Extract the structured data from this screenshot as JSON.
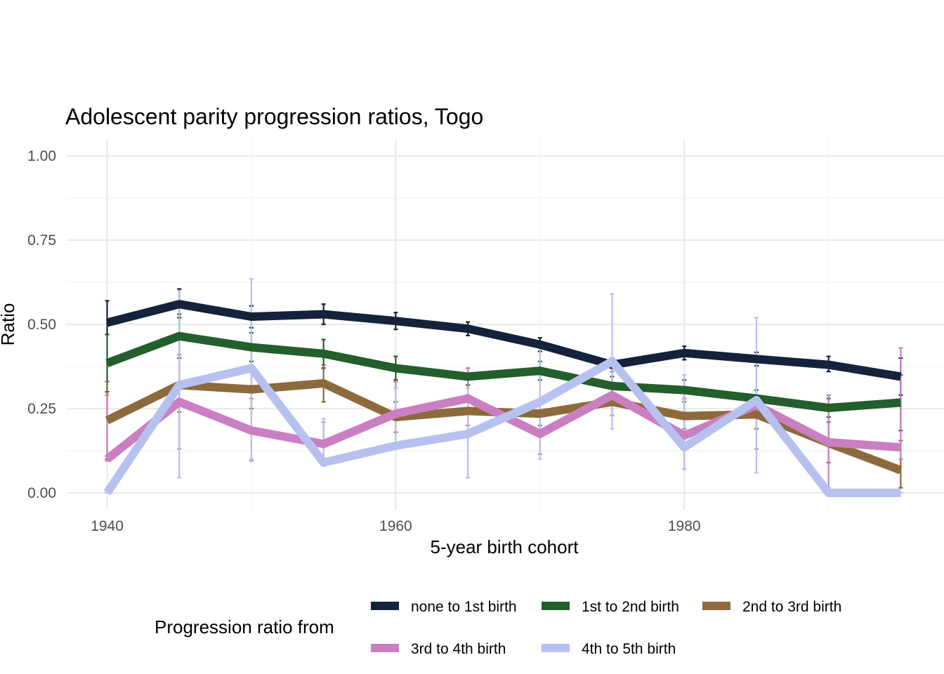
{
  "chart_data": {
    "type": "line",
    "title": "Adolescent parity progression ratios,  Togo",
    "xlabel": "5-year birth cohort",
    "ylabel": "Ratio",
    "x": [
      1940,
      1945,
      1950,
      1955,
      1960,
      1965,
      1970,
      1975,
      1980,
      1985,
      1990,
      1995
    ],
    "xlim": [
      1937.2,
      1998.0
    ],
    "ylim": [
      -0.05,
      1.05
    ],
    "x_ticks": [
      1940,
      1960,
      1980
    ],
    "x_tick_labels": [
      "1940",
      "1960",
      "1980"
    ],
    "y_ticks": [
      0,
      0.25,
      0.5,
      0.75,
      1
    ],
    "y_tick_labels": [
      "0.00",
      "0.25",
      "0.50",
      "0.75",
      "1.00"
    ],
    "grid": true,
    "legend": {
      "title": "Progression ratio from",
      "position": "bottom"
    },
    "series": [
      {
        "name": "none to 1st birth",
        "color": "#15223b",
        "values": [
          0.505,
          0.56,
          0.523,
          0.53,
          0.51,
          0.487,
          0.44,
          0.38,
          0.415,
          0.397,
          0.38,
          0.345
        ],
        "lower": [
          0.47,
          0.52,
          0.49,
          0.5,
          0.485,
          0.467,
          0.42,
          0.36,
          0.395,
          0.377,
          0.36,
          0.29
        ],
        "upper": [
          0.57,
          0.605,
          0.555,
          0.56,
          0.535,
          0.507,
          0.46,
          0.4,
          0.435,
          0.417,
          0.405,
          0.4
        ]
      },
      {
        "name": "1st to 2nd birth",
        "color": "#235e2c",
        "values": [
          0.385,
          0.465,
          0.432,
          0.413,
          0.37,
          0.345,
          0.362,
          0.317,
          0.305,
          0.28,
          0.252,
          0.268
        ],
        "lower": [
          0.3,
          0.4,
          0.39,
          0.37,
          0.335,
          0.32,
          0.335,
          0.29,
          0.28,
          0.255,
          0.225,
          0.185
        ],
        "upper": [
          0.47,
          0.53,
          0.475,
          0.455,
          0.405,
          0.37,
          0.39,
          0.345,
          0.335,
          0.305,
          0.28,
          0.35
        ]
      },
      {
        "name": "2nd to 3rd birth",
        "color": "#8c6a3c",
        "values": [
          0.215,
          0.32,
          0.307,
          0.325,
          0.225,
          0.243,
          0.235,
          0.27,
          0.228,
          0.233,
          0.148,
          0.067
        ],
        "lower": [
          0.1,
          0.24,
          0.25,
          0.27,
          0.18,
          0.2,
          0.2,
          0.23,
          0.19,
          0.19,
          0.09,
          0.015
        ],
        "upper": [
          0.33,
          0.4,
          0.365,
          0.38,
          0.27,
          0.29,
          0.27,
          0.31,
          0.27,
          0.28,
          0.21,
          0.155
        ]
      },
      {
        "name": "3rd to 4th birth",
        "color": "#c97fc1",
        "values": [
          0.1,
          0.27,
          0.185,
          0.145,
          0.235,
          0.28,
          0.175,
          0.29,
          0.17,
          0.26,
          0.15,
          0.135
        ],
        "lower": [
          0.095,
          0.13,
          0.095,
          0.08,
          0.135,
          0.2,
          0.115,
          0.23,
          0.07,
          0.13,
          0.015,
          0.1
        ],
        "upper": [
          0.29,
          0.41,
          0.28,
          0.21,
          0.33,
          0.37,
          0.24,
          0.36,
          0.28,
          0.39,
          0.29,
          0.43
        ]
      },
      {
        "name": "4th to 5th birth",
        "color": "#b7c1f0",
        "values": [
          0.0,
          0.32,
          0.37,
          0.09,
          0.14,
          0.175,
          0.27,
          0.39,
          0.135,
          0.275,
          0.0,
          0.0
        ],
        "lower": [
          0.0,
          0.045,
          0.1,
          0.08,
          0.13,
          0.045,
          0.1,
          0.19,
          0.07,
          0.06,
          0.0,
          0.0
        ],
        "upper": [
          0.0,
          0.6,
          0.635,
          0.22,
          0.31,
          0.31,
          0.45,
          0.59,
          0.35,
          0.52,
          0.0,
          0.0
        ]
      }
    ]
  }
}
